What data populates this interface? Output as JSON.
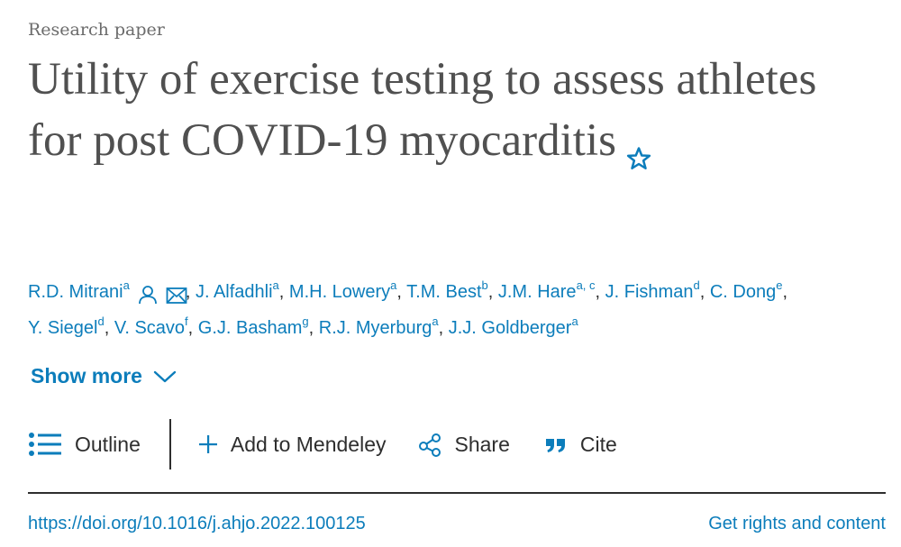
{
  "article": {
    "type": "Research paper",
    "title": "Utility of exercise testing to assess athletes for post COVID-19 myocarditis"
  },
  "authors": [
    {
      "name": "R.D. Mitrani",
      "affil": "a",
      "sep": ""
    },
    {
      "name": "J. Alfadhli",
      "affil": "a",
      "sep": ","
    },
    {
      "name": "M.H. Lowery",
      "affil": "a",
      "sep": ","
    },
    {
      "name": "T.M. Best",
      "affil": "b",
      "sep": ","
    },
    {
      "name": "J.M. Hare",
      "affil": "a, c",
      "sep": ","
    },
    {
      "name": "J. Fishman",
      "affil": "d",
      "sep": ","
    },
    {
      "name": "C. Dong",
      "affil": "e",
      "sep": ","
    },
    {
      "name": "Y. Siegel",
      "affil": "d",
      "sep": ","
    },
    {
      "name": "V. Scavo",
      "affil": "f",
      "sep": ","
    },
    {
      "name": "G.J. Basham",
      "affil": "g",
      "sep": ","
    },
    {
      "name": "R.J. Myerburg",
      "affil": "a",
      "sep": ","
    },
    {
      "name": "J.J. Goldberger",
      "affil": "a",
      "sep": ","
    }
  ],
  "show_more": "Show more",
  "toolbar": {
    "outline": "Outline",
    "mendeley": "Add to Mendeley",
    "share": "Share",
    "cite": "Cite"
  },
  "footer": {
    "doi": "https://doi.org/10.1016/j.ahjo.2022.100125",
    "rights": "Get rights and content"
  },
  "icons": {
    "star": "star-icon",
    "person": "person-icon",
    "envelope": "envelope-icon",
    "chevron": "chevron-down-icon",
    "outline": "list-icon",
    "plus": "plus-icon",
    "share": "share-icon",
    "quote": "quote-icon"
  },
  "colors": {
    "link": "#0c7dbb",
    "text": "#2e2e2e",
    "title": "#505050",
    "muted": "#6b6b6b"
  }
}
